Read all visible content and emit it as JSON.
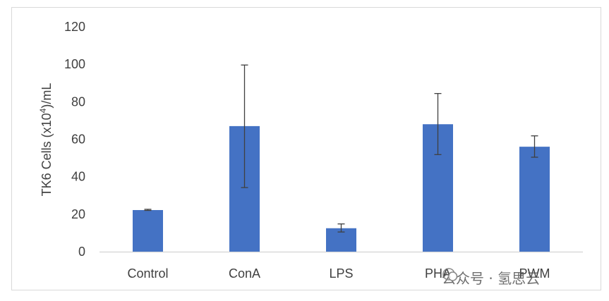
{
  "chart_data": {
    "type": "bar",
    "categories": [
      "Control",
      "ConA",
      "LPS",
      "PHA",
      "PWM"
    ],
    "values": [
      22.2,
      67,
      12.5,
      68,
      56
    ],
    "error_bars": {
      "lower": [
        22.0,
        34.2,
        10.5,
        51.8,
        50.4
      ],
      "upper": [
        22.6,
        99.6,
        14.8,
        84.4,
        61.8
      ]
    },
    "ylabel_main": "TK6 Cells (x10",
    "ylabel_sup": "4",
    "ylabel_end": ")/mL",
    "xlabel": "",
    "ylim": [
      0,
      120
    ],
    "yticks": [
      0,
      20,
      40,
      60,
      80,
      100,
      120
    ],
    "bar_color": "#4472c4",
    "error_color": "#404040",
    "grid": false
  },
  "watermark": {
    "text": "公众号 · 氢思云",
    "icon": "chat-bubble-icon"
  }
}
